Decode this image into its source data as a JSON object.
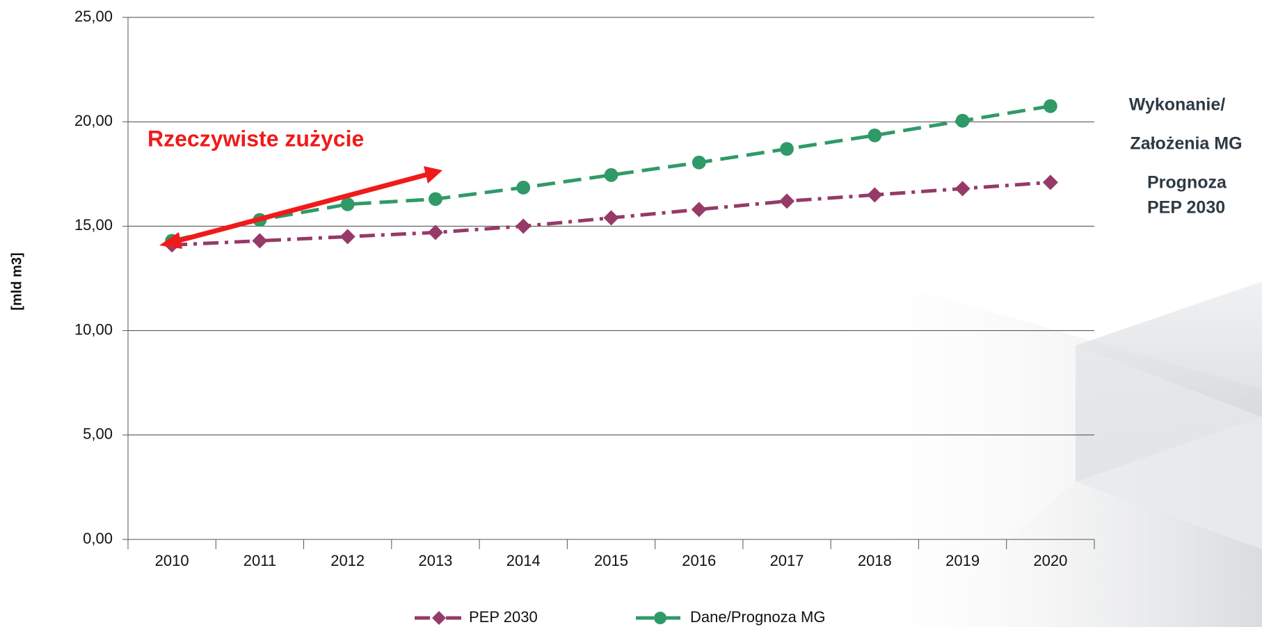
{
  "chart_data": {
    "type": "line",
    "y_label": "[mld m3]",
    "annotation": "Rzeczywiste zużycie",
    "side_labels": [
      "Wykonanie/",
      "Założenia MG",
      "Prognoza",
      "PEP 2030"
    ],
    "categories": [
      "2010",
      "2011",
      "2012",
      "2013",
      "2014",
      "2015",
      "2016",
      "2017",
      "2018",
      "2019",
      "2020"
    ],
    "series": [
      {
        "name": "PEP 2030",
        "color": "#963a68",
        "marker": "diamond",
        "dash": "dashdot",
        "values": [
          14.1,
          14.3,
          14.5,
          14.7,
          15.0,
          15.4,
          15.8,
          16.2,
          16.5,
          16.8,
          17.1
        ]
      },
      {
        "name": "Dane/Prognoza MG",
        "color": "#2f9a68",
        "marker": "circle",
        "dash": "dash",
        "values": [
          14.3,
          15.3,
          16.05,
          16.3,
          16.85,
          17.45,
          18.05,
          18.7,
          19.35,
          20.05,
          20.75
        ]
      }
    ],
    "ylim": [
      0,
      25
    ],
    "yticks": [
      {
        "value": 0,
        "label": "0,00"
      },
      {
        "value": 5,
        "label": "5,00"
      },
      {
        "value": 10,
        "label": "10,00"
      },
      {
        "value": 15,
        "label": "15,00"
      },
      {
        "value": 20,
        "label": "20,00"
      },
      {
        "value": 25,
        "label": "25,00"
      }
    ],
    "grid": true,
    "legend": "bottom"
  }
}
